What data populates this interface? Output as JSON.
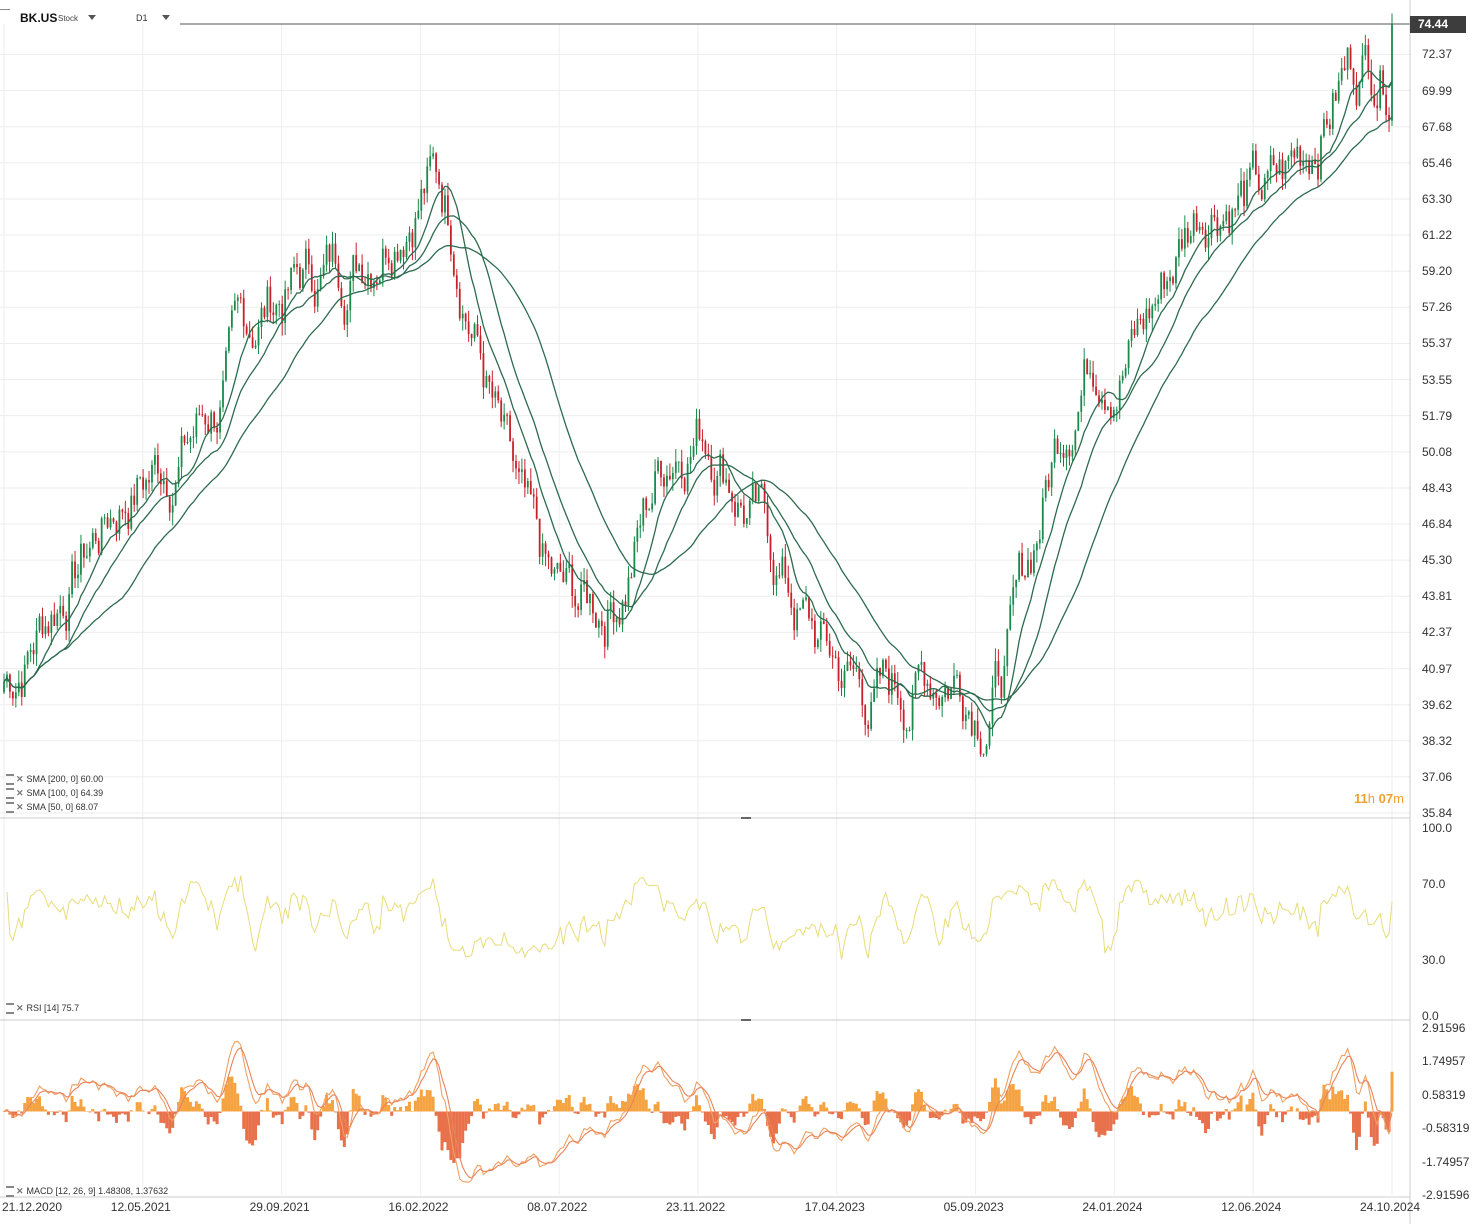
{
  "header": {
    "symbol": "BK.US",
    "symbol_type": "Stock",
    "timeframe": "D1"
  },
  "price_axis": {
    "ticks": [
      "72.37",
      "69.99",
      "67.68",
      "65.46",
      "63.30",
      "61.22",
      "59.20",
      "57.26",
      "55.37",
      "53.55",
      "51.79",
      "50.08",
      "48.43",
      "46.84",
      "45.30",
      "43.81",
      "42.37",
      "40.97",
      "39.62",
      "38.32",
      "37.06",
      "35.84"
    ],
    "current_price": "74.44",
    "scale": "log"
  },
  "rsi_axis": {
    "ticks": [
      "100.0",
      "70.0",
      "30.0",
      "0.0"
    ]
  },
  "macd_axis": {
    "ticks": [
      "2.91596",
      "1.74957",
      "0.58319",
      "-0.58319",
      "-1.74957",
      "-2.91596"
    ]
  },
  "time_axis": {
    "ticks": [
      "21.12.2020",
      "12.05.2021",
      "29.09.2021",
      "16.02.2022",
      "08.07.2022",
      "23.11.2022",
      "17.04.2023",
      "05.09.2023",
      "24.01.2024",
      "12.06.2024",
      "24.10.2024"
    ]
  },
  "legends": {
    "sma200": "SMA [200, 0] 60.00",
    "sma100": "SMA [100, 0] 64.39",
    "sma50": "SMA [50, 0] 68.07",
    "rsi": "RSI [14] 75.7",
    "macd": "MACD [12, 26, 9] 1.48308, 1.37632"
  },
  "countdown": {
    "hours": "11",
    "h_unit": "h",
    "minutes": "07",
    "m_unit": "m"
  },
  "colors": {
    "up": "#1a8a4a",
    "down": "#c8202a",
    "sma": "#2d6b4e",
    "rsi": "#e8dc7a",
    "macd_line": "#f0a060",
    "macd_signal": "#e8845a",
    "hist_pos": "#f5a340",
    "hist_neg": "#e8704a",
    "price_tag_bg": "#3d3d3d"
  },
  "chart_data": {
    "type": "candlestick",
    "x": [
      "2020-12-21",
      "2021-05-12",
      "2021-09-29",
      "2022-02-16",
      "2022-07-08",
      "2022-11-23",
      "2023-04-17",
      "2023-09-05",
      "2024-01-24",
      "2024-06-12",
      "2024-10-24"
    ],
    "close": [
      40.5,
      48.2,
      58.6,
      63.5,
      42.8,
      51.5,
      40.0,
      41.5,
      55.4,
      64.5,
      74.44
    ],
    "sma": [
      {
        "period": 50,
        "last": 68.07
      },
      {
        "period": 100,
        "last": 64.39
      },
      {
        "period": 200,
        "last": 60.0
      }
    ],
    "rsi": {
      "period": 14,
      "last": 75.7,
      "range": [
        0,
        100
      ],
      "levels": [
        30,
        70
      ]
    },
    "macd": {
      "fast": 12,
      "slow": 26,
      "signal": 9,
      "macd": 1.48308,
      "signal_value": 1.37632
    }
  }
}
